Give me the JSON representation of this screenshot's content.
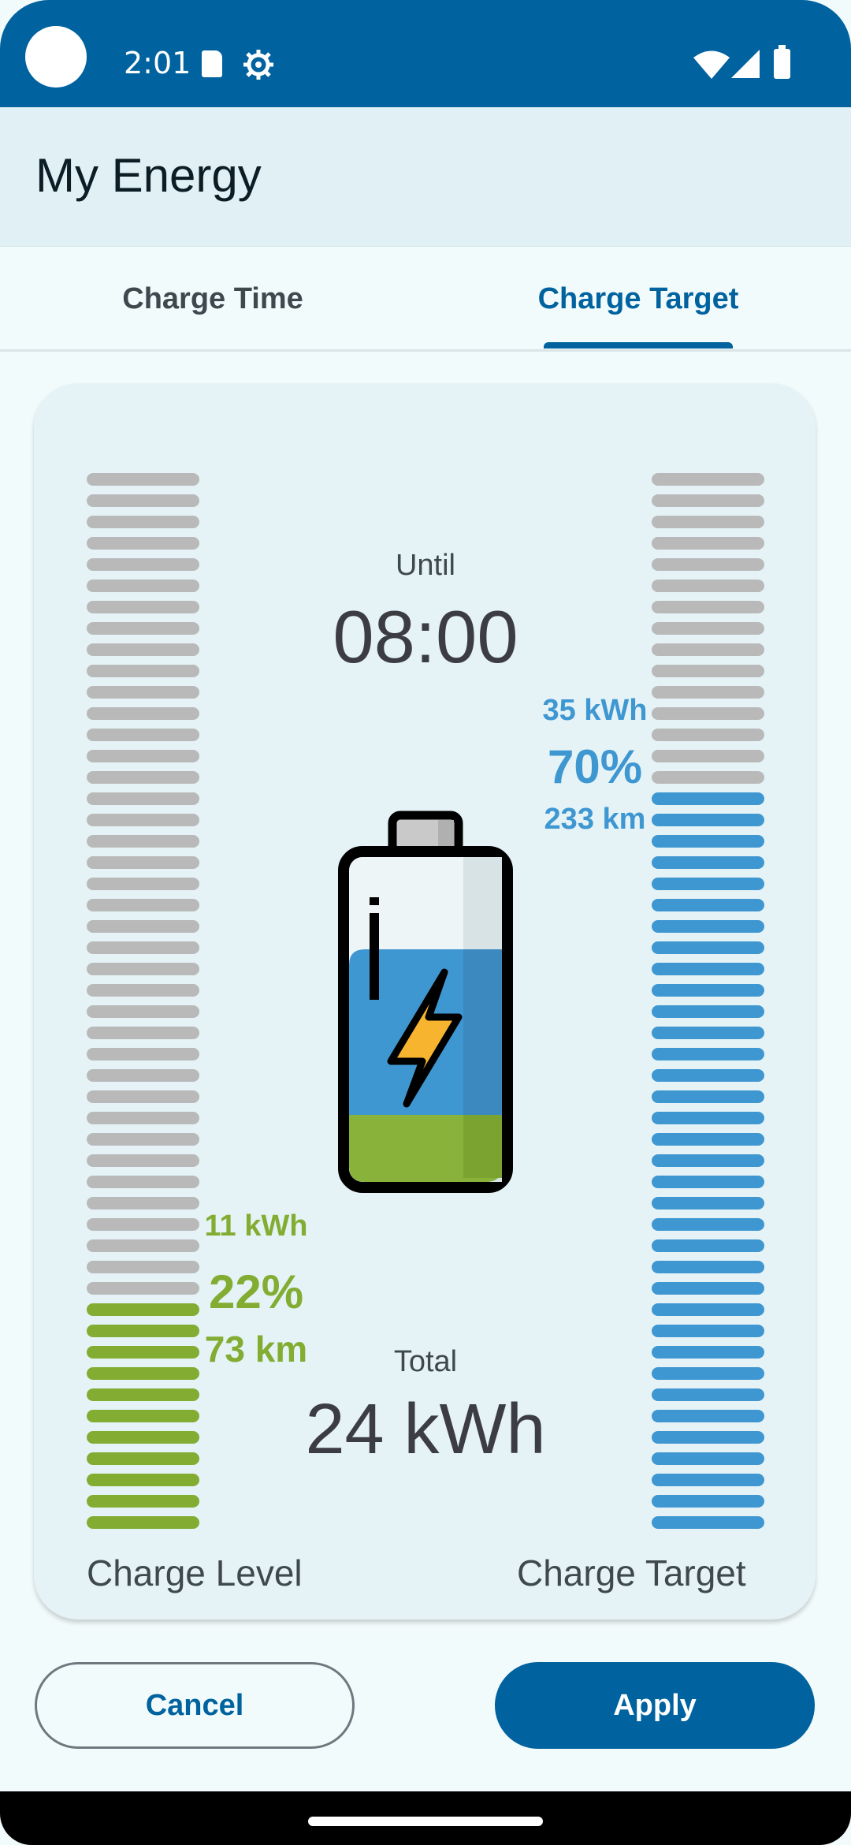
{
  "status_bar": {
    "time": "2:01",
    "icons": [
      "camera-cutout-icon",
      "sd-card-icon",
      "gear-icon",
      "wifi-icon",
      "signal-icon",
      "battery-icon"
    ]
  },
  "app_bar": {
    "title": "My Energy"
  },
  "tabs": [
    {
      "label": "Charge Time",
      "selected": false
    },
    {
      "label": "Charge Target",
      "selected": true
    }
  ],
  "card": {
    "until_label": "Until",
    "until_time": "08:00",
    "target": {
      "kwh": "35 kWh",
      "percent": "70%",
      "km": "233 km",
      "fraction": 0.7
    },
    "level": {
      "kwh": "11 kWh",
      "percent": "22%",
      "km": "73 km",
      "fraction": 0.22
    },
    "total_label": "Total",
    "total_value": "24 kWh",
    "charge_level_label": "Charge Level",
    "charge_target_label": "Charge Target",
    "battery_icon": "battery-charging-icon"
  },
  "buttons": {
    "cancel": "Cancel",
    "apply": "Apply"
  },
  "colors": {
    "primary": "#00629e",
    "level_green": "#82ad32",
    "target_blue": "#3f97d2",
    "bar_gray": "#b9b9b9"
  }
}
